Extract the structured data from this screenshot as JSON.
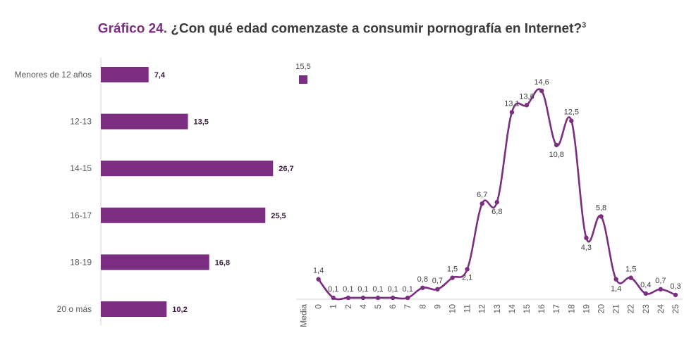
{
  "title": {
    "lead": "Gráfico 24.",
    "text": "¿Con qué edad comenzaste a consumir pornografía en Internet?",
    "note": "3"
  },
  "colors": {
    "accent": "#7b2d82"
  },
  "chart_data": [
    {
      "type": "bar",
      "orientation": "horizontal",
      "categories": [
        "Menores de 12 años",
        "12-13",
        "14-15",
        "16-17",
        "18-19",
        "20 o más"
      ],
      "values": [
        7.4,
        13.5,
        26.7,
        25.5,
        16.8,
        10.2
      ],
      "value_labels": [
        "7,4",
        "13,5",
        "26,7",
        "25,5",
        "16,8",
        "10,2"
      ],
      "xlim": [
        0,
        27
      ]
    },
    {
      "type": "line",
      "legend": {
        "placement": "top-left",
        "marker_label": "15,5"
      },
      "categories": [
        "Media",
        "0",
        "1",
        "2",
        "4",
        "5",
        "6",
        "7",
        "8",
        "9",
        "10",
        "11",
        "12",
        "13",
        "14",
        "15",
        "16",
        "17",
        "18",
        "19",
        "20",
        "21",
        "22",
        "23",
        "24",
        "25"
      ],
      "values": [
        15.5,
        1.4,
        0.1,
        0.1,
        0.1,
        0.1,
        0.1,
        0.1,
        0.8,
        0.7,
        1.5,
        2.1,
        6.7,
        6.8,
        13.1,
        13.6,
        14.6,
        10.8,
        12.5,
        4.3,
        5.8,
        1.4,
        1.5,
        0.4,
        0.7,
        0.3
      ],
      "value_labels": [
        "15,5",
        "1,4",
        "0,1",
        "0,1",
        "0,1",
        "0,1",
        "0,1",
        "0,1",
        "0,8",
        "0,7",
        "1,5",
        "2,1",
        "6,7",
        "6,8",
        "13,1",
        "13,6",
        "14,6",
        "10,8",
        "12,5",
        "4,3",
        "5,8",
        "1,4",
        "1,5",
        "0,4",
        "0,7",
        "0,3"
      ],
      "ylim": [
        0,
        15
      ]
    }
  ]
}
